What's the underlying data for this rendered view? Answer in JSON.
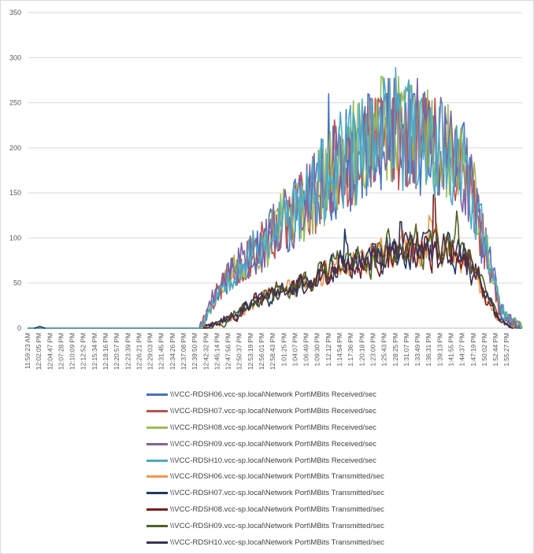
{
  "chart_data": {
    "type": "line",
    "title": "",
    "xlabel": "",
    "ylabel": "",
    "ylim": [
      0,
      350
    ],
    "yticks": [
      0,
      50,
      100,
      150,
      200,
      250,
      300,
      350
    ],
    "grid": "horizontal",
    "legend_position": "bottom",
    "x_tick_labels": [
      "11:59:23 AM",
      "12:02:05 PM",
      "12:04:47 PM",
      "12:07:28 PM",
      "12:10:09 PM",
      "12:12:52 PM",
      "12:15:34 PM",
      "12:18:16 PM",
      "12:20:57 PM",
      "12:23:39 PM",
      "12:26:21 PM",
      "12:29:03 PM",
      "12:31:45 PM",
      "12:34:26 PM",
      "12:37:08 PM",
      "12:39:50 PM",
      "12:42:32 PM",
      "12:45:14 PM",
      "12:47:56 PM",
      "12:50:37 PM",
      "12:53:19 PM",
      "12:56:01 PM",
      "12:58:43 PM",
      "1:01:25 PM",
      "1:04:07 PM",
      "1:06:49 PM",
      "1:09:30 PM",
      "1:12:12 PM",
      "1:14:54 PM",
      "1:17:36 PM",
      "1:20:18 PM",
      "1:23:00 PM",
      "1:25:43 PM",
      "1:28:25 PM",
      "1:31:07 PM",
      "1:33:49 PM",
      "1:36:31 PM",
      "1:39:13 PM",
      "1:41:55 PM",
      "1:44:37 PM",
      "1:47:19 PM",
      "1:50:02 PM",
      "1:52:44 PM",
      "1:55:27 PM"
    ],
    "x_tick_positions": [
      0,
      1,
      2,
      3,
      4,
      5,
      6,
      7,
      8,
      9,
      10,
      11,
      12,
      13,
      14,
      15,
      16,
      17,
      18,
      19,
      20,
      21,
      22,
      23,
      24,
      25,
      26,
      27,
      28,
      29,
      30,
      31,
      32,
      33,
      34,
      35,
      36,
      37,
      38,
      39,
      40,
      41,
      42,
      43
    ],
    "x_range": [
      0,
      44.4
    ],
    "envelope_x": [
      0,
      15.5,
      16.2,
      18,
      20,
      22,
      24,
      26,
      28,
      30,
      32,
      33,
      34.5,
      36,
      38,
      39.5,
      40.5,
      41.5,
      42.5,
      43.2,
      44,
      44.4
    ],
    "received_envelope": [
      0,
      0,
      20,
      60,
      80,
      105,
      130,
      155,
      180,
      200,
      215,
      220,
      215,
      210,
      195,
      170,
      120,
      70,
      20,
      10,
      3,
      0
    ],
    "transmitted_envelope": [
      0,
      0,
      2,
      12,
      28,
      38,
      45,
      55,
      70,
      75,
      82,
      85,
      88,
      88,
      85,
      75,
      50,
      25,
      8,
      4,
      1,
      0
    ],
    "series": [
      {
        "name": "\\\\VCC-RDSH06.vcc-sp.local\\Network Port\\MBits Received/sec",
        "color": "#4472c4",
        "kind": "received",
        "seed": 11,
        "peak": 260,
        "peak_x": 27.0
      },
      {
        "name": "\\\\VCC-RDSH07.vcc-sp.local\\Network Port\\MBits Received/sec",
        "color": "#c0504d",
        "kind": "received",
        "seed": 23,
        "peak": 255,
        "peak_x": 31.5
      },
      {
        "name": "\\\\VCC-RDSH08.vcc-sp.local\\Network Port\\MBits Received/sec",
        "color": "#9bbb59",
        "kind": "received",
        "seed": 37,
        "peak": 279,
        "peak_x": 31.8
      },
      {
        "name": "\\\\VCC-RDSH09.vcc-sp.local\\Network Port\\MBits Received/sec",
        "color": "#8064a2",
        "kind": "received",
        "seed": 41,
        "peak": 277,
        "peak_x": 35.0
      },
      {
        "name": "\\\\VCC-RDSH10.vcc-sp.local\\Network Port\\MBits Received/sec",
        "color": "#4bacc6",
        "kind": "received",
        "seed": 53,
        "peak": 289,
        "peak_x": 33.0
      },
      {
        "name": "\\\\VCC-RDSH06.vcc-sp.local\\Network Port\\MBits Transmitted/sec",
        "color": "#f79646",
        "kind": "transmitted",
        "seed": 67,
        "peak": 125,
        "peak_x": 36.0
      },
      {
        "name": "\\\\VCC-RDSH07.vcc-sp.local\\Network Port\\MBits Transmitted/sec",
        "color": "#1f3864",
        "kind": "transmitted",
        "seed": 71,
        "peak": 110,
        "peak_x": 28.5
      },
      {
        "name": "\\\\VCC-RDSH08.vcc-sp.local\\Network Port\\MBits Transmitted/sec",
        "color": "#7b1c1c",
        "kind": "transmitted",
        "seed": 83,
        "peak": 148,
        "peak_x": 36.5
      },
      {
        "name": "\\\\VCC-RDSH09.vcc-sp.local\\Network Port\\MBits Transmitted/sec",
        "color": "#4f6228",
        "kind": "transmitted",
        "seed": 97,
        "peak": 130,
        "peak_x": 38.5
      },
      {
        "name": "\\\\VCC-RDSH10.vcc-sp.local\\Network Port\\MBits Transmitted/sec",
        "color": "#3f3151",
        "kind": "transmitted",
        "seed": 101,
        "peak": 118,
        "peak_x": 33.5
      }
    ],
    "initial_blip": {
      "x": [
        0.6,
        0.9,
        1.1,
        1.3,
        1.6
      ],
      "y": [
        0,
        1,
        2,
        1,
        0
      ]
    }
  }
}
